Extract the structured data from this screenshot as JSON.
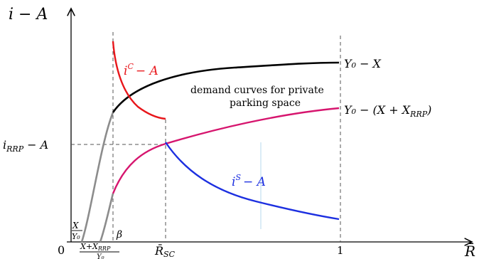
{
  "axes": {
    "y_label": "i − A",
    "x_label": "R̄",
    "origin_label": "0",
    "x_tick_one": "1",
    "x_tick_rsc": "R̄",
    "x_tick_rsc_sub": "SC"
  },
  "curves": {
    "ic_label": "i",
    "ic_sup": "C",
    "ic_rest": "− A",
    "is_label": "i",
    "is_sup": "S",
    "is_rest": "− A",
    "upper_label": "Y₀ − X",
    "lower_label_main": "Y₀ − (X + X",
    "lower_label_sub": "RRP",
    "lower_label_close": ")"
  },
  "annotation": {
    "line1": "demand curves for private",
    "line2": "parking space"
  },
  "y_tick": {
    "main": "i",
    "sub": "RRP",
    "rest": " − A"
  },
  "x_ticks_left": {
    "frac1_num": "X",
    "frac1_den": "Y₀",
    "frac2_num": "X+X",
    "frac2_num_sub": "RRP",
    "frac2_den": "Y₀",
    "beta": "β"
  },
  "colors": {
    "black_curve": "#000000",
    "red_curve": "#e8161b",
    "magenta_curve": "#d6156e",
    "blue_curve": "#1c2fe0",
    "gray_curve": "#8c8c8c",
    "dashed": "#555555"
  }
}
